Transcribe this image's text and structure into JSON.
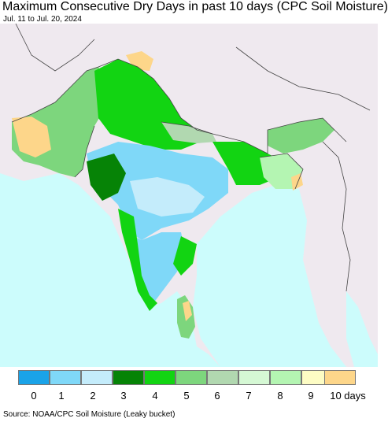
{
  "title": "Maximum Consecutive Dry Days in past 10 days (CPC Soil Moisture)",
  "subtitle": "Jul. 11 to Jul. 20, 2024",
  "source": "Source: NOAA/CPC Soil Moisture (Leaky bucket)",
  "legend": [
    {
      "label": "0",
      "color": "#1aa3e8"
    },
    {
      "label": "1",
      "color": "#7fd8f8"
    },
    {
      "label": "2",
      "color": "#c4ecfb"
    },
    {
      "label": "3",
      "color": "#068306"
    },
    {
      "label": "4",
      "color": "#12d412"
    },
    {
      "label": "5",
      "color": "#7dd67d"
    },
    {
      "label": "6",
      "color": "#b1d8b0"
    },
    {
      "label": "7",
      "color": "#d5f8d4"
    },
    {
      "label": "8",
      "color": "#b4f5b2"
    },
    {
      "label": "9",
      "color": "#fdfcc4"
    },
    {
      "label": "10 days",
      "color": "#fdd68a"
    }
  ],
  "colors": {
    "ocean": "#ccfcfc",
    "outside": "#efe9ef",
    "border": "#444444"
  }
}
